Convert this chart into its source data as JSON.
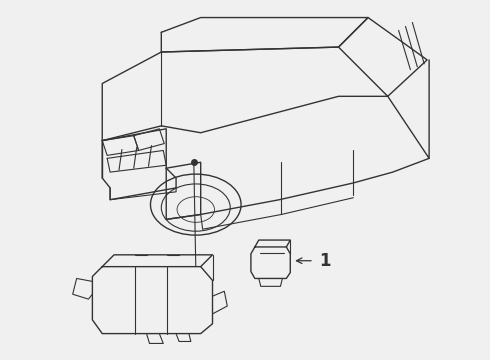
{
  "background_color": "#f0f0f0",
  "line_color": "#333333",
  "label_1": "1",
  "fig_width": 4.9,
  "fig_height": 3.6,
  "dpi": 100
}
